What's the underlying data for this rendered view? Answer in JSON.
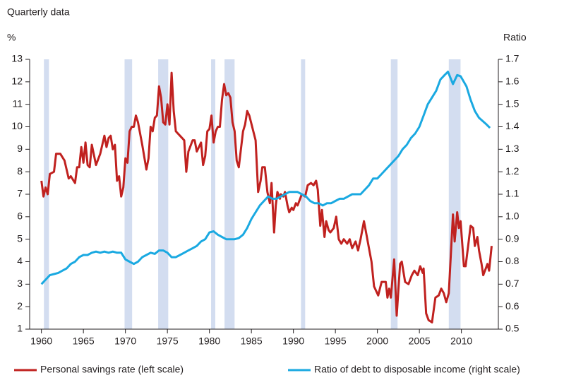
{
  "chart_data": {
    "type": "line",
    "subtitle": "Quarterly data",
    "y_label": "%",
    "y2_label": "Ratio",
    "xlim": [
      1958.6,
      2014.4
    ],
    "xticks": [
      1960,
      1965,
      1970,
      1975,
      1980,
      1985,
      1990,
      1995,
      2000,
      2005,
      2010
    ],
    "ylim": [
      1,
      13
    ],
    "yticks": [
      1,
      2,
      3,
      4,
      5,
      6,
      7,
      8,
      9,
      10,
      11,
      12,
      13
    ],
    "y2lim": [
      0.5,
      1.7
    ],
    "y2ticks": [
      0.5,
      0.6,
      0.7,
      0.8,
      0.9,
      {
        "value": 1,
        "label": "1.0"
      },
      1.1,
      1.2,
      1.3,
      1.4,
      1.5,
      1.6,
      1.7
    ],
    "shading_color": "#d3ddf0",
    "shading": [
      [
        1960.3,
        1960.9
      ],
      [
        1969.9,
        1970.8
      ],
      [
        1973.9,
        1975.1
      ],
      [
        1980.2,
        1980.7
      ],
      [
        1981.8,
        1983.0
      ],
      [
        1990.9,
        1991.4
      ],
      [
        2001.6,
        2002.4
      ],
      [
        2008.5,
        2009.9
      ]
    ],
    "series": [
      {
        "name": "Personal savings rate (left scale)",
        "color": "#c0211f",
        "x": [
          1960,
          1960.25,
          1960.5,
          1960.75,
          1961,
          1961.5,
          1961.75,
          1962.25,
          1962.75,
          1963.25,
          1963.5,
          1964,
          1964.25,
          1964.5,
          1964.75,
          1965,
          1965.25,
          1965.5,
          1965.75,
          1966,
          1966.5,
          1967,
          1967.5,
          1967.75,
          1968,
          1968.25,
          1968.5,
          1968.75,
          1969,
          1969.25,
          1969.5,
          1969.75,
          1970,
          1970.25,
          1970.5,
          1970.75,
          1971,
          1971.25,
          1971.5,
          1972,
          1972.5,
          1972.75,
          1973,
          1973.25,
          1973.5,
          1973.75,
          1974,
          1974.25,
          1974.5,
          1974.75,
          1975,
          1975.25,
          1975.5,
          1975.75,
          1976,
          1976.5,
          1977,
          1977.25,
          1977.5,
          1978,
          1978.25,
          1978.5,
          1979,
          1979.25,
          1979.5,
          1979.75,
          1980,
          1980.25,
          1980.5,
          1980.75,
          1981,
          1981.25,
          1981.5,
          1981.75,
          1982,
          1982.25,
          1982.5,
          1982.75,
          1983,
          1983.25,
          1983.5,
          1983.75,
          1984,
          1984.25,
          1984.5,
          1984.75,
          1985.5,
          1985.8,
          1986.1,
          1986.3,
          1986.6,
          1986.9,
          1987.2,
          1987.4,
          1987.7,
          1987.9,
          1988.1,
          1988.4,
          1988.5,
          1988.8,
          1989.0,
          1989.3,
          1989.5,
          1989.8,
          1990.0,
          1990.3,
          1990.5,
          1990.8,
          1991.0,
          1991.4,
          1991.7,
          1992.1,
          1992.4,
          1992.7,
          1992.9,
          1993.2,
          1993.4,
          1993.7,
          1993.9,
          1994.2,
          1994.4,
          1994.8,
          1995.1,
          1995.4,
          1995.7,
          1996.0,
          1996.4,
          1996.7,
          1997.0,
          1997.4,
          1997.7,
          1998.0,
          1998.4,
          1998.6,
          1999.0,
          1999.3,
          1999.6,
          2000.1,
          2000.5,
          2001.0,
          2001.2,
          2001.4,
          2001.6,
          2002.0,
          2002.3,
          2002.7,
          2002.9,
          2003.3,
          2003.7,
          2004.1,
          2004.4,
          2004.8,
          2005.1,
          2005.4,
          2005.5,
          2005.8,
          2006.1,
          2006.5,
          2006.9,
          2007.3,
          2007.6,
          2007.9,
          2008.2,
          2008.5,
          2009.0,
          2009.2,
          2009.5,
          2009.7,
          2009.9,
          2010.3,
          2010.5,
          2010.8,
          2011.1,
          2011.4,
          2011.6,
          2011.9,
          2012.1,
          2012.4,
          2012.6,
          2012.9,
          2013.1,
          2013.3,
          2013.6
        ],
        "values": [
          7.6,
          6.9,
          7.3,
          7.0,
          7.9,
          8.0,
          8.8,
          8.8,
          8.5,
          7.7,
          7.8,
          7.5,
          8.2,
          8.2,
          9.1,
          8.4,
          9.3,
          8.3,
          8.2,
          9.2,
          8.3,
          8.8,
          9.6,
          9.1,
          9.5,
          9.6,
          9.0,
          9.2,
          7.6,
          7.8,
          6.9,
          7.3,
          8.6,
          8.4,
          9.8,
          10.0,
          10.0,
          10.5,
          10.2,
          9.2,
          8.1,
          8.6,
          10.0,
          9.8,
          10.4,
          10.5,
          11.8,
          11.3,
          10.2,
          10.1,
          11.0,
          10.1,
          12.4,
          10.7,
          9.8,
          9.6,
          9.4,
          8.0,
          8.9,
          9.4,
          9.4,
          8.9,
          9.3,
          8.3,
          8.7,
          9.8,
          9.9,
          10.5,
          9.3,
          9.8,
          10.0,
          10.0,
          11.2,
          11.9,
          11.4,
          11.5,
          11.3,
          10.2,
          9.8,
          8.5,
          8.2,
          9.0,
          9.8,
          10.1,
          10.7,
          10.5,
          9.4,
          7.1,
          7.6,
          8.2,
          8.2,
          7.1,
          6.6,
          7.5,
          5.3,
          6.5,
          7.1,
          6.8,
          7.0,
          6.9,
          7.1,
          6.5,
          6.2,
          6.4,
          6.3,
          6.6,
          6.5,
          6.8,
          7.0,
          6.9,
          7.4,
          7.5,
          7.4,
          7.6,
          7.2,
          5.6,
          6.3,
          5.1,
          5.8,
          5.4,
          5.3,
          5.5,
          6.0,
          5.0,
          4.8,
          5.0,
          4.8,
          5.0,
          4.6,
          4.9,
          4.5,
          5.0,
          5.8,
          5.4,
          4.6,
          4.0,
          2.9,
          2.5,
          3.1,
          3.1,
          2.4,
          2.8,
          2.4,
          4.1,
          1.6,
          3.9,
          4.0,
          3.1,
          3.0,
          3.4,
          3.6,
          3.4,
          3.8,
          3.5,
          3.7,
          1.7,
          1.4,
          1.3,
          2.4,
          2.5,
          2.8,
          2.6,
          2.2,
          2.6,
          6.1,
          4.9,
          6.2,
          5.5,
          5.8,
          3.8,
          3.8,
          4.7,
          5.6,
          5.5,
          4.7,
          5.1,
          4.5,
          3.9,
          3.4,
          3.7,
          3.9,
          3.6,
          4.7
        ]
      },
      {
        "name": "Ratio of debt to disposable income (right scale)",
        "color": "#1aa9e1",
        "axis": "y2",
        "x": [
          1960,
          1960.5,
          1961,
          1961.5,
          1962,
          1962.5,
          1963,
          1963.5,
          1964,
          1964.5,
          1965,
          1965.5,
          1966,
          1966.5,
          1967,
          1967.5,
          1968,
          1968.5,
          1969,
          1969.5,
          1970,
          1970.5,
          1971,
          1971.5,
          1972,
          1972.5,
          1973,
          1973.5,
          1974,
          1974.5,
          1975,
          1975.5,
          1976,
          1976.5,
          1977,
          1977.5,
          1978,
          1978.5,
          1979,
          1979.5,
          1980,
          1980.5,
          1981,
          1981.5,
          1982,
          1982.5,
          1983,
          1983.5,
          1984,
          1984.5,
          1985,
          1985.5,
          1986,
          1986.5,
          1987,
          1987.5,
          1988,
          1988.5,
          1989,
          1989.5,
          1990,
          1990.5,
          1991,
          1991.5,
          1992,
          1992.5,
          1993,
          1993.5,
          1994,
          1994.5,
          1995,
          1995.5,
          1996,
          1996.5,
          1997,
          1997.5,
          1998,
          1998.5,
          1999,
          1999.5,
          2000,
          2000.5,
          2001,
          2001.5,
          2002,
          2002.5,
          2003,
          2003.5,
          2004,
          2004.5,
          2005,
          2005.5,
          2006,
          2006.5,
          2007,
          2007.5,
          2008,
          2008.4,
          2009.0,
          2009.5,
          2009.9,
          2010.6,
          2011.1,
          2011.6,
          2012.1,
          2013.0,
          2013.4
        ],
        "values": [
          0.7,
          0.72,
          0.74,
          0.745,
          0.75,
          0.76,
          0.77,
          0.79,
          0.8,
          0.82,
          0.83,
          0.83,
          0.84,
          0.845,
          0.84,
          0.845,
          0.84,
          0.845,
          0.84,
          0.84,
          0.81,
          0.8,
          0.79,
          0.8,
          0.82,
          0.83,
          0.84,
          0.835,
          0.85,
          0.85,
          0.84,
          0.82,
          0.82,
          0.83,
          0.84,
          0.85,
          0.86,
          0.87,
          0.89,
          0.9,
          0.93,
          0.935,
          0.92,
          0.91,
          0.9,
          0.9,
          0.9,
          0.905,
          0.92,
          0.95,
          0.99,
          1.02,
          1.05,
          1.07,
          1.09,
          1.08,
          1.08,
          1.09,
          1.1,
          1.11,
          1.11,
          1.11,
          1.1,
          1.09,
          1.07,
          1.06,
          1.06,
          1.05,
          1.06,
          1.06,
          1.07,
          1.08,
          1.08,
          1.09,
          1.1,
          1.1,
          1.1,
          1.12,
          1.14,
          1.17,
          1.17,
          1.19,
          1.21,
          1.23,
          1.25,
          1.27,
          1.3,
          1.32,
          1.35,
          1.37,
          1.4,
          1.45,
          1.5,
          1.53,
          1.56,
          1.61,
          1.63,
          1.645,
          1.59,
          1.63,
          1.625,
          1.58,
          1.52,
          1.47,
          1.44,
          1.41,
          1.395
        ]
      }
    ]
  }
}
